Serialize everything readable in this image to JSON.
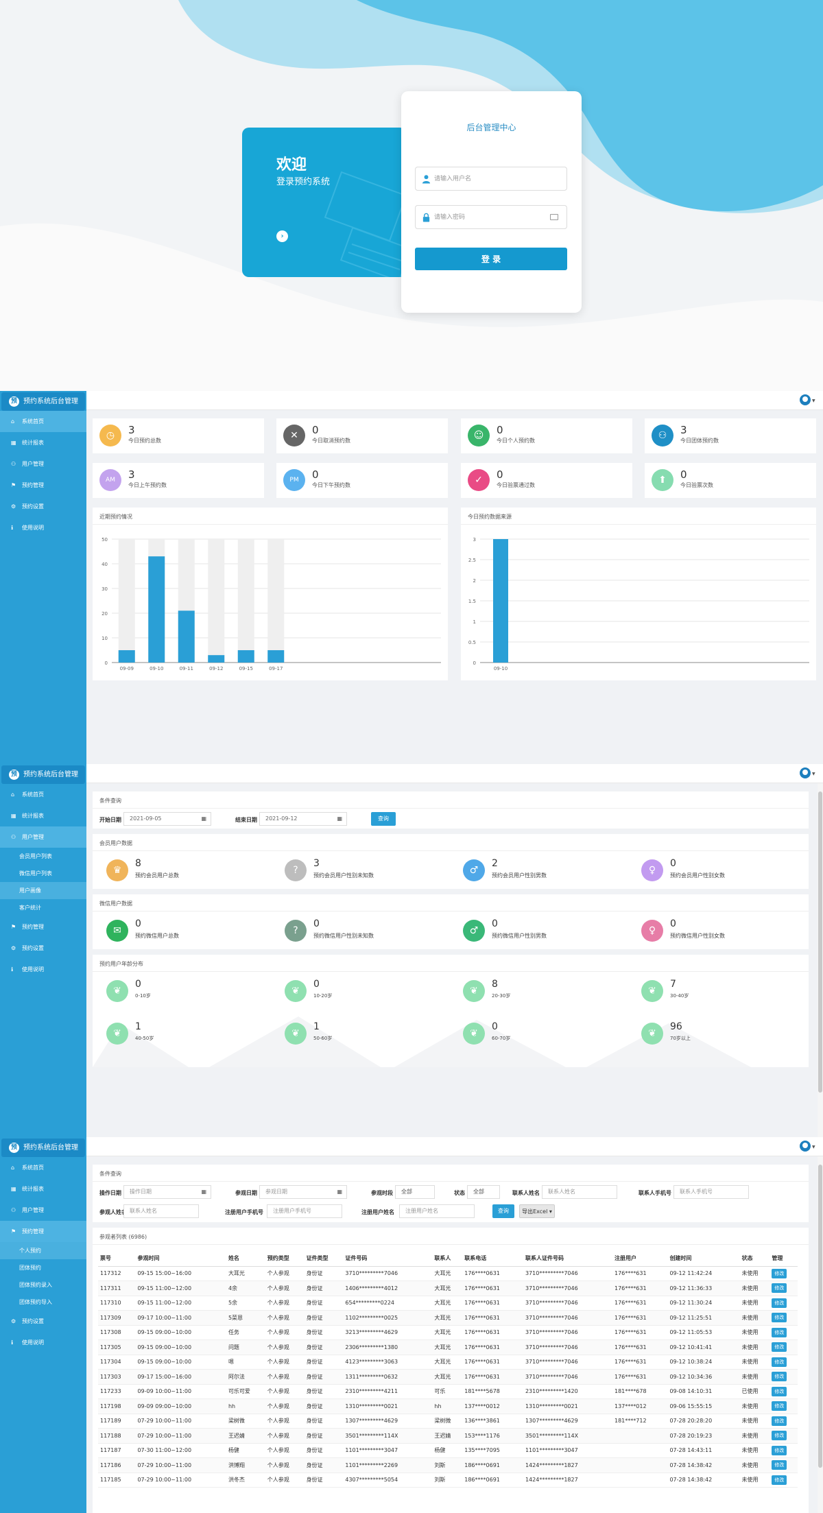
{
  "colors": {
    "primary": "#2a9fd6",
    "sidebar": "#2a9fd6",
    "login_accent": "#18a6d6"
  },
  "login": {
    "welcome_title": "欢迎",
    "welcome_subtitle": "登录预约系统",
    "card_title": "后台管理中心",
    "username_placeholder": "请输入用户名",
    "password_placeholder": "请输入密码",
    "login_button": "登 录"
  },
  "app": {
    "brand": "预约系统后台管理"
  },
  "menu": {
    "home": "系统首页",
    "stats": "统计报表",
    "users": "用户管理",
    "booking": "预约管理",
    "settings": "预约设置",
    "help": "使用说明"
  },
  "users_submenu": [
    "会员用户列表",
    "微信用户列表",
    "用户画像",
    "客户统计"
  ],
  "booking_submenu": [
    "个人预约",
    "团体预约",
    "团体预约录入",
    "团体预约导入"
  ],
  "dashboard": {
    "stats": [
      {
        "value": "3",
        "label": "今日预约总数",
        "icon": "clock-icon",
        "color": "#f5b94e"
      },
      {
        "value": "0",
        "label": "今日取消预约数",
        "icon": "cancel-icon",
        "color": "#666666"
      },
      {
        "value": "0",
        "label": "今日个人预约数",
        "icon": "user-icon",
        "color": "#39b56a"
      },
      {
        "value": "3",
        "label": "今日团体预约数",
        "icon": "group-icon",
        "color": "#1f8fc6"
      },
      {
        "value": "3",
        "label": "今日上午预约数",
        "icon": "am-icon",
        "color": "#c3a3ee"
      },
      {
        "value": "0",
        "label": "今日下午预约数",
        "icon": "pm-icon",
        "color": "#5bb2ef"
      },
      {
        "value": "0",
        "label": "今日验票通过数",
        "icon": "check-icon",
        "color": "#e94b85"
      },
      {
        "value": "0",
        "label": "今日验票次数",
        "icon": "stamp-icon",
        "color": "#86dcb0"
      }
    ],
    "chart1_title": "近期预约情况",
    "chart2_title": "今日预约数据来源"
  },
  "chart_data": [
    {
      "type": "bar",
      "title": "近期预约情况",
      "categories": [
        "09-09",
        "09-10",
        "09-11",
        "09-12",
        "09-15",
        "09-17"
      ],
      "values": [
        5,
        43,
        21,
        3,
        5,
        5
      ],
      "ylim": [
        0,
        50
      ],
      "yticks": [
        0,
        10,
        20,
        30,
        40,
        50
      ],
      "grid": true
    },
    {
      "type": "bar",
      "title": "今日预约数据来源",
      "categories": [
        "09-10"
      ],
      "values": [
        3
      ],
      "ylim": [
        0,
        3
      ],
      "yticks": [
        0,
        0.5,
        1,
        1.5,
        2,
        2.5,
        3
      ],
      "grid": true
    }
  ],
  "portrait": {
    "filter_title": "条件查询",
    "start_label": "开始日期",
    "start_value": "2021-09-05",
    "end_label": "结束日期",
    "end_value": "2021-09-12",
    "query": "查询",
    "member_title": "会员用户数据",
    "member": [
      {
        "value": "8",
        "label": "预约会员用户总数",
        "icon": "crown-icon",
        "color": "#f0b45a"
      },
      {
        "value": "3",
        "label": "预约会员用户性别未知数",
        "icon": "question-icon",
        "color": "#bdbdbd"
      },
      {
        "value": "2",
        "label": "预约会员用户性别男数",
        "icon": "male-icon",
        "color": "#4fa8e8"
      },
      {
        "value": "0",
        "label": "预约会员用户性别女数",
        "icon": "female-icon",
        "color": "#c29bf0"
      }
    ],
    "wechat_title": "微信用户数据",
    "wechat": [
      {
        "value": "0",
        "label": "预约微信用户总数",
        "icon": "wechat-icon",
        "color": "#2fb35d"
      },
      {
        "value": "0",
        "label": "预约微信用户性别未知数",
        "icon": "question-icon",
        "color": "#7aa08e"
      },
      {
        "value": "0",
        "label": "预约微信用户性别男数",
        "icon": "male-icon",
        "color": "#3ab878"
      },
      {
        "value": "0",
        "label": "预约微信用户性别女数",
        "icon": "female-icon",
        "color": "#e77da7"
      }
    ],
    "age_title": "预约用户年龄分布",
    "ages": [
      {
        "value": "0",
        "label": "0-10岁"
      },
      {
        "value": "0",
        "label": "10-20岁"
      },
      {
        "value": "8",
        "label": "20-30岁"
      },
      {
        "value": "7",
        "label": "30-40岁"
      },
      {
        "value": "1",
        "label": "40-50岁"
      },
      {
        "value": "1",
        "label": "50-60岁"
      },
      {
        "value": "0",
        "label": "60-70岁"
      },
      {
        "value": "96",
        "label": "70岁以上"
      }
    ]
  },
  "bookings": {
    "filter_title": "条件查询",
    "f_opdate": "操作日期",
    "f_opdate_ph": "操作日期",
    "f_visitdate": "参观日期",
    "f_visitdate_ph": "参观日期",
    "f_period": "参观时段",
    "f_period_val": "全部",
    "f_status": "状态",
    "f_status_val": "全部",
    "f_contact": "联系人姓名",
    "f_contact_ph": "联系人姓名",
    "f_contactphone": "联系人手机号",
    "f_contactphone_ph": "联系人手机号",
    "f_visitor": "参观人姓名",
    "f_visitor_ph": "联系人姓名",
    "f_regphone": "注册用户手机号",
    "f_regphone_ph": "注册用户手机号",
    "f_regname": "注册用户姓名",
    "f_regname_ph": "注册用户姓名",
    "query": "查询",
    "export": "导出Excel ▾",
    "list_title": "参观者列表 (6986)",
    "headers": [
      "票号",
      "参观时间",
      "姓名",
      "预约类型",
      "证件类型",
      "证件号码",
      "联系人",
      "联系电话",
      "联系人证件号码",
      "注册用户",
      "创建时间",
      "状态",
      "管理"
    ],
    "edit": "修改",
    "rows": [
      [
        "117312",
        "09-15 15:00~16:00",
        "大耳光",
        "个人参观",
        "身份证",
        "3710*********7046",
        "大耳光",
        "176****0631",
        "3710*********7046",
        "176****631",
        "09-12 11:42:24",
        "未使用"
      ],
      [
        "117311",
        "09-15 11:00~12:00",
        "4余",
        "个人参观",
        "身份证",
        "1406*********4012",
        "大耳光",
        "176****0631",
        "3710*********7046",
        "176****631",
        "09-12 11:36:33",
        "未使用"
      ],
      [
        "117310",
        "09-15 11:00~12:00",
        "5余",
        "个人参观",
        "身份证",
        "654*********0224",
        "大耳光",
        "176****0631",
        "3710*********7046",
        "176****631",
        "09-12 11:30:24",
        "未使用"
      ],
      [
        "117309",
        "09-17 10:00~11:00",
        "5菜恩",
        "个人参观",
        "身份证",
        "1102*********0025",
        "大耳光",
        "176****0631",
        "3710*********7046",
        "176****631",
        "09-12 11:25:51",
        "未使用"
      ],
      [
        "117308",
        "09-15 09:00~10:00",
        "任务",
        "个人参观",
        "身份证",
        "3213*********4629",
        "大耳光",
        "176****0631",
        "3710*********7046",
        "176****631",
        "09-12 11:05:53",
        "未使用"
      ],
      [
        "117305",
        "09-15 09:00~10:00",
        "问题",
        "个人参观",
        "身份证",
        "2306*********1380",
        "大耳光",
        "176****0631",
        "3710*********7046",
        "176****631",
        "09-12 10:41:41",
        "未使用"
      ],
      [
        "117304",
        "09-15 09:00~10:00",
        "嗯",
        "个人参观",
        "身份证",
        "4123*********3063",
        "大耳光",
        "176****0631",
        "3710*********7046",
        "176****631",
        "09-12 10:38:24",
        "未使用"
      ],
      [
        "117303",
        "09-17 15:00~16:00",
        "阿尔法",
        "个人参观",
        "身份证",
        "1311*********0632",
        "大耳光",
        "176****0631",
        "3710*********7046",
        "176****631",
        "09-12 10:34:36",
        "未使用"
      ],
      [
        "117233",
        "09-09 10:00~11:00",
        "可乐可爱",
        "个人参观",
        "身份证",
        "2310*********4211",
        "可乐",
        "181****5678",
        "2310*********1420",
        "181****678",
        "09-08 14:10:31",
        "已使用"
      ],
      [
        "117198",
        "09-09 09:00~10:00",
        "hh",
        "个人参观",
        "身份证",
        "1310*********0021",
        "hh",
        "137****0012",
        "1310*********0021",
        "137****012",
        "09-06 15:55:15",
        "未使用"
      ],
      [
        "117189",
        "07-29 10:00~11:00",
        "梁树微",
        "个人参观",
        "身份证",
        "1307*********4629",
        "梁树微",
        "136****3861",
        "1307*********4629",
        "181****712",
        "07-28 20:28:20",
        "未使用"
      ],
      [
        "117188",
        "07-29 10:00~11:00",
        "王迟婧",
        "个人参观",
        "身份证",
        "3501*********114X",
        "王迟婧",
        "153****1176",
        "3501*********114X",
        "",
        "07-28 20:19:23",
        "未使用"
      ],
      [
        "117187",
        "07-30 11:00~12:00",
        "杨健",
        "个人参观",
        "身份证",
        "1101*********3047",
        "杨健",
        "135****7095",
        "1101*********3047",
        "",
        "07-28 14:43:11",
        "未使用"
      ],
      [
        "117186",
        "07-29 10:00~11:00",
        "洪博翔",
        "个人参观",
        "身份证",
        "1101*********2269",
        "刘斯",
        "186****0691",
        "1424*********1827",
        "",
        "07-28 14:38:42",
        "未使用"
      ],
      [
        "117185",
        "07-29 10:00~11:00",
        "洪冬杰",
        "个人参观",
        "身份证",
        "4307*********5054",
        "刘斯",
        "186****0691",
        "1424*********1827",
        "",
        "07-28 14:38:42",
        "未使用"
      ]
    ]
  }
}
